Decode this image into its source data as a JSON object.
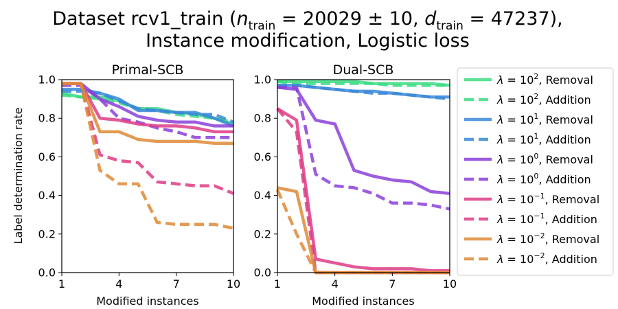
{
  "figure": {
    "title_line1": "Dataset rcv1_train (",
    "title_n": "n",
    "title_n_sub": "train",
    "title_n_val": " = 20029 ± 10, ",
    "title_d": "d",
    "title_d_sub": "train",
    "title_d_val": " = 47237),",
    "title_line2": "Instance modification, Logistic loss"
  },
  "legend": {
    "lambda_symbol": "λ = 10",
    "entries": [
      {
        "exp": "2",
        "kind": ", Removal",
        "color": "#3ddc84",
        "style": "solid"
      },
      {
        "exp": "2",
        "kind": ", Addition",
        "color": "#3ddc84",
        "style": "dashed"
      },
      {
        "exp": "1",
        "kind": ", Removal",
        "color": "#3a88d8",
        "style": "solid"
      },
      {
        "exp": "1",
        "kind": ", Addition",
        "color": "#3a88d8",
        "style": "dashed"
      },
      {
        "exp": "0",
        "kind": ", Removal",
        "color": "#8b3fd9",
        "style": "solid"
      },
      {
        "exp": "0",
        "kind": ", Addition",
        "color": "#8b3fd9",
        "style": "dashed"
      },
      {
        "exp": "−1",
        "kind": ", Removal",
        "color": "#de3b85",
        "style": "solid"
      },
      {
        "exp": "−1",
        "kind": ", Addition",
        "color": "#de3b85",
        "style": "dashed"
      },
      {
        "exp": "−2",
        "kind": ", Removal",
        "color": "#de8a36",
        "style": "solid"
      },
      {
        "exp": "−2",
        "kind": ", Addition",
        "color": "#de8a36",
        "style": "dashed"
      }
    ]
  },
  "chart_data": [
    {
      "type": "line",
      "title": "Primal-SCB",
      "xlabel": "Modified instances",
      "ylabel": "Label determination rate",
      "xlim": [
        1,
        10
      ],
      "ylim": [
        0.0,
        1.0
      ],
      "xticks": [
        "1",
        "4",
        "7",
        "10"
      ],
      "yticks": [
        "0.0",
        "0.2",
        "0.4",
        "0.6",
        "0.8",
        "1.0"
      ],
      "x": [
        1,
        2,
        3,
        4,
        5,
        6,
        7,
        8,
        9,
        10
      ],
      "series": [
        {
          "name": "λ=10^2, Removal",
          "color": "#3ddc84",
          "style": "solid",
          "values": [
            0.93,
            0.91,
            0.91,
            0.89,
            0.85,
            0.85,
            0.83,
            0.82,
            0.8,
            0.77
          ]
        },
        {
          "name": "λ=10^2, Addition",
          "color": "#3ddc84",
          "style": "dashed",
          "values": [
            0.92,
            0.91,
            0.9,
            0.88,
            0.85,
            0.84,
            0.82,
            0.81,
            0.8,
            0.78
          ]
        },
        {
          "name": "λ=10^1, Removal",
          "color": "#3a88d8",
          "style": "solid",
          "values": [
            0.95,
            0.95,
            0.93,
            0.9,
            0.84,
            0.84,
            0.83,
            0.83,
            0.8,
            0.76
          ]
        },
        {
          "name": "λ=10^1, Addition",
          "color": "#3a88d8",
          "style": "dashed",
          "values": [
            0.94,
            0.94,
            0.93,
            0.89,
            0.85,
            0.84,
            0.83,
            0.82,
            0.82,
            0.78
          ]
        },
        {
          "name": "λ=10^0, Removal",
          "color": "#8b3fd9",
          "style": "solid",
          "values": [
            0.98,
            0.98,
            0.9,
            0.86,
            0.81,
            0.79,
            0.78,
            0.78,
            0.76,
            0.76
          ]
        },
        {
          "name": "λ=10^0, Addition",
          "color": "#8b3fd9",
          "style": "dashed",
          "values": [
            0.97,
            0.97,
            0.9,
            0.8,
            0.78,
            0.75,
            0.73,
            0.7,
            0.7,
            0.7
          ]
        },
        {
          "name": "λ=10^-1, Removal",
          "color": "#de3b85",
          "style": "solid",
          "values": [
            0.98,
            0.98,
            0.8,
            0.79,
            0.77,
            0.76,
            0.76,
            0.75,
            0.73,
            0.73
          ]
        },
        {
          "name": "λ=10^-1, Addition",
          "color": "#de3b85",
          "style": "dashed",
          "values": [
            0.98,
            0.98,
            0.61,
            0.58,
            0.57,
            0.47,
            0.46,
            0.45,
            0.45,
            0.41
          ]
        },
        {
          "name": "λ=10^-2, Removal",
          "color": "#de8a36",
          "style": "solid",
          "values": [
            0.98,
            0.98,
            0.73,
            0.73,
            0.69,
            0.68,
            0.68,
            0.68,
            0.67,
            0.67
          ]
        },
        {
          "name": "λ=10^-2, Addition",
          "color": "#de8a36",
          "style": "dashed",
          "values": [
            0.98,
            0.98,
            0.53,
            0.46,
            0.46,
            0.26,
            0.25,
            0.25,
            0.25,
            0.23
          ]
        }
      ]
    },
    {
      "type": "line",
      "title": "Dual-SCB",
      "xlabel": "Modified instances",
      "ylabel": "",
      "xlim": [
        1,
        10
      ],
      "ylim": [
        0.0,
        1.0
      ],
      "xticks": [
        "1",
        "4",
        "7",
        "10"
      ],
      "yticks": [
        "0.0",
        "0.2",
        "0.4",
        "0.6",
        "0.8",
        "1.0"
      ],
      "x": [
        1,
        2,
        3,
        4,
        5,
        6,
        7,
        8,
        9,
        10
      ],
      "series": [
        {
          "name": "λ=10^2, Removal",
          "color": "#3ddc84",
          "style": "solid",
          "values": [
            0.99,
            0.99,
            0.99,
            0.99,
            0.99,
            0.98,
            0.98,
            0.98,
            0.98,
            0.97
          ]
        },
        {
          "name": "λ=10^2, Addition",
          "color": "#3ddc84",
          "style": "dashed",
          "values": [
            0.99,
            0.98,
            0.98,
            0.98,
            0.98,
            0.98,
            0.97,
            0.97,
            0.97,
            0.97
          ]
        },
        {
          "name": "λ=10^1, Removal",
          "color": "#3a88d8",
          "style": "solid",
          "values": [
            0.97,
            0.97,
            0.96,
            0.95,
            0.94,
            0.94,
            0.93,
            0.92,
            0.91,
            0.91
          ]
        },
        {
          "name": "λ=10^1, Addition",
          "color": "#3a88d8",
          "style": "dashed",
          "values": [
            0.97,
            0.97,
            0.96,
            0.95,
            0.94,
            0.93,
            0.93,
            0.92,
            0.91,
            0.9
          ]
        },
        {
          "name": "λ=10^0, Removal",
          "color": "#8b3fd9",
          "style": "solid",
          "values": [
            0.96,
            0.95,
            0.79,
            0.77,
            0.53,
            0.5,
            0.48,
            0.47,
            0.42,
            0.41
          ]
        },
        {
          "name": "λ=10^0, Addition",
          "color": "#8b3fd9",
          "style": "dashed",
          "values": [
            0.96,
            0.96,
            0.51,
            0.45,
            0.44,
            0.41,
            0.36,
            0.36,
            0.35,
            0.33
          ]
        },
        {
          "name": "λ=10^-1, Removal",
          "color": "#de3b85",
          "style": "solid",
          "values": [
            0.85,
            0.79,
            0.07,
            0.05,
            0.03,
            0.02,
            0.02,
            0.02,
            0.01,
            0.01
          ]
        },
        {
          "name": "λ=10^-1, Addition",
          "color": "#de3b85",
          "style": "dashed",
          "values": [
            0.85,
            0.73,
            0.0,
            0.0,
            0.0,
            0.0,
            0.0,
            0.0,
            0.0,
            0.0
          ]
        },
        {
          "name": "λ=10^-2, Removal",
          "color": "#de8a36",
          "style": "solid",
          "values": [
            0.44,
            0.42,
            0.0,
            0.0,
            0.0,
            0.0,
            0.0,
            0.0,
            0.0,
            0.0
          ]
        },
        {
          "name": "λ=10^-2, Addition",
          "color": "#de8a36",
          "style": "dashed",
          "values": [
            0.43,
            0.2,
            0.0,
            0.0,
            0.0,
            0.0,
            0.0,
            0.0,
            0.0,
            0.0
          ]
        }
      ]
    }
  ]
}
